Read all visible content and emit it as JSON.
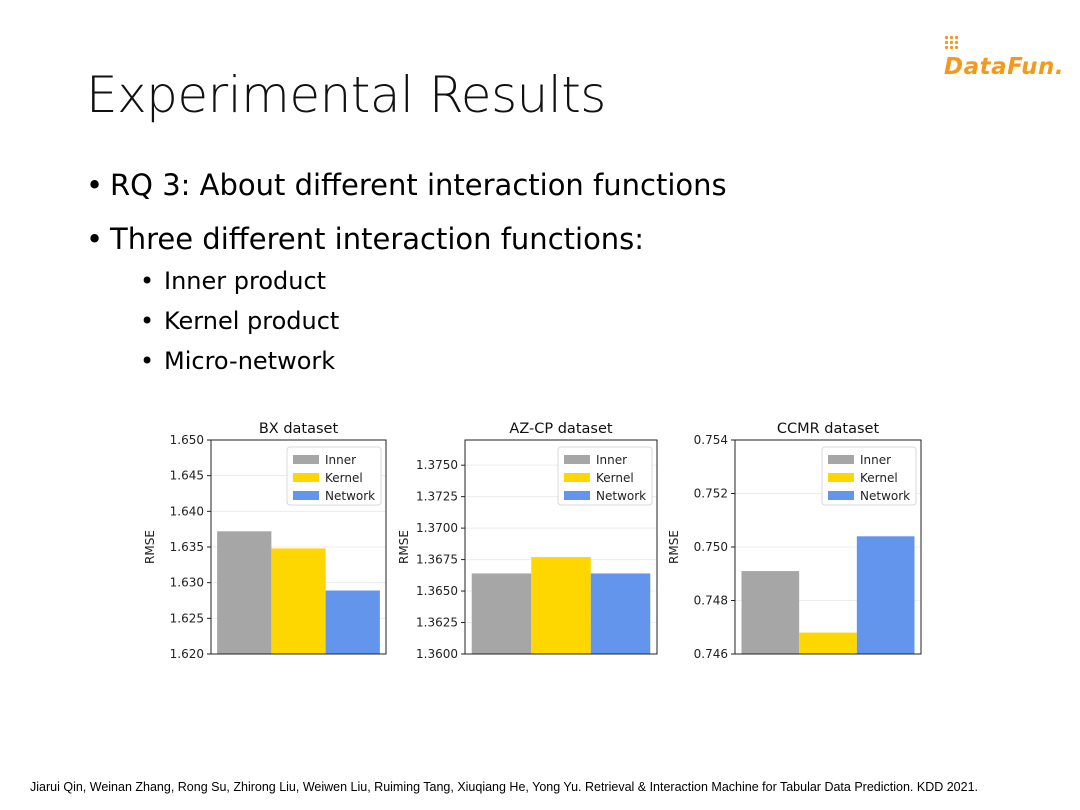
{
  "logo": "DataFun.",
  "title": "Experimental Results",
  "bullets": [
    "RQ 3: About different interaction functions",
    "Three different interaction functions:"
  ],
  "sub_bullets": [
    "Inner product",
    "Kernel product",
    "Micro-network"
  ],
  "colors": {
    "inner": "#a6a6a6",
    "kernel": "#ffd700",
    "network": "#6495ed",
    "logo": "#f39a1c"
  },
  "chart_data": [
    {
      "type": "bar",
      "title": "BX dataset",
      "ylabel": "RMSE",
      "ylim": [
        1.62,
        1.65
      ],
      "yticks": [
        "1.620",
        "1.625",
        "1.630",
        "1.635",
        "1.640",
        "1.645",
        "1.650"
      ],
      "yvals": [
        1.62,
        1.625,
        1.63,
        1.635,
        1.64,
        1.645,
        1.65
      ],
      "legend_position": "top-right",
      "series": [
        {
          "name": "Inner",
          "values": [
            1.6372
          ]
        },
        {
          "name": "Kernel",
          "values": [
            1.6348
          ]
        },
        {
          "name": "Network",
          "values": [
            1.6289
          ]
        }
      ]
    },
    {
      "type": "bar",
      "title": "AZ-CP dataset",
      "ylabel": "RMSE",
      "ylim": [
        1.36,
        1.377
      ],
      "yticks": [
        "1.3600",
        "1.3625",
        "1.3650",
        "1.3675",
        "1.3700",
        "1.3725",
        "1.3750"
      ],
      "yvals": [
        1.36,
        1.3625,
        1.365,
        1.3675,
        1.37,
        1.3725,
        1.375
      ],
      "legend_position": "top-right",
      "series": [
        {
          "name": "Inner",
          "values": [
            1.3664
          ]
        },
        {
          "name": "Kernel",
          "values": [
            1.3677
          ]
        },
        {
          "name": "Network",
          "values": [
            1.3664
          ]
        }
      ]
    },
    {
      "type": "bar",
      "title": "CCMR dataset",
      "ylabel": "RMSE",
      "ylim": [
        0.746,
        0.754
      ],
      "yticks": [
        "0.746",
        "0.748",
        "0.750",
        "0.752",
        "0.754"
      ],
      "yvals": [
        0.746,
        0.748,
        0.75,
        0.752,
        0.754
      ],
      "legend_position": "top-right",
      "series": [
        {
          "name": "Inner",
          "values": [
            0.7491
          ]
        },
        {
          "name": "Kernel",
          "values": [
            0.7468
          ]
        },
        {
          "name": "Network",
          "values": [
            0.7504
          ]
        }
      ]
    }
  ],
  "footer": "Jiarui Qin, Weinan Zhang, Rong Su, Zhirong Liu, Weiwen Liu, Ruiming Tang, Xiuqiang He, Yong Yu. Retrieval & Interaction Machine for Tabular Data Prediction. KDD 2021."
}
